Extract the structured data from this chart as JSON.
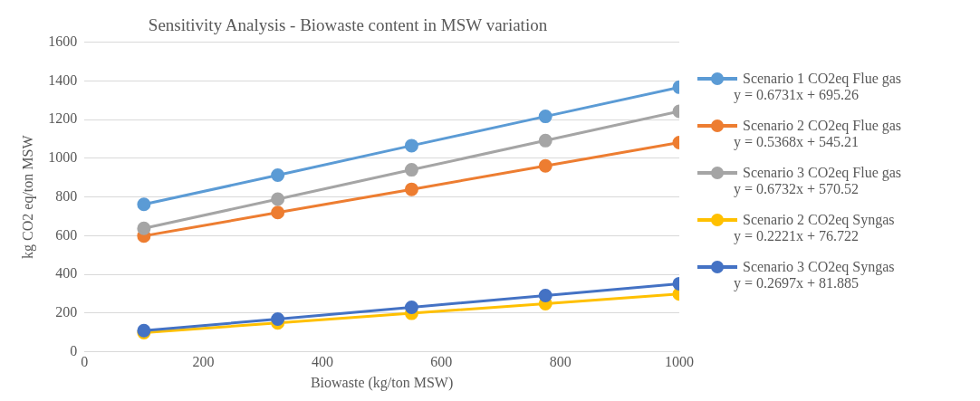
{
  "chart_data": {
    "type": "line",
    "title": "Sensitivity Analysis - Biowaste content in MSW variation",
    "xlabel": "Biowaste (kg/ton MSW)",
    "ylabel": "kg CO2 eq/ton MSW",
    "x": [
      100,
      325,
      550,
      775,
      1000
    ],
    "series": [
      {
        "name": "Scenario 1 CO2eq Flue gas",
        "color": "#5b9bd5",
        "values": [
          762,
          913,
          1066,
          1217,
          1368
        ]
      },
      {
        "name": "Scenario 2 CO2eq Flue gas",
        "color": "#ed7d31",
        "values": [
          599,
          720,
          840,
          961,
          1082
        ]
      },
      {
        "name": "Scenario 3 CO2eq Flue gas",
        "color": "#a5a5a5",
        "values": [
          638,
          789,
          941,
          1092,
          1243
        ]
      },
      {
        "name": "Scenario 2 CO2eq Syngas",
        "color": "#ffc000",
        "values": [
          99,
          149,
          199,
          249,
          299
        ]
      },
      {
        "name": "Scenario 3 CO2eq Syngas",
        "color": "#4472c4",
        "values": [
          109,
          169,
          230,
          291,
          352
        ]
      }
    ],
    "annotations": [
      "y = 0.6731x + 695.26",
      "y = 0.5368x + 545.21",
      "y = 0.6732x + 570.52",
      "y = 0.2221x + 76.722",
      "y = 0.2697x + 81.885"
    ],
    "xlim": [
      0,
      1000
    ],
    "xticks": [
      0,
      200,
      400,
      600,
      800,
      1000
    ],
    "ylim": [
      0,
      1600
    ],
    "yticks": [
      0,
      200,
      400,
      600,
      800,
      1000,
      1200,
      1400,
      1600
    ],
    "grid": "y",
    "legend": "right",
    "marker": "circle",
    "line_style": "solid"
  }
}
